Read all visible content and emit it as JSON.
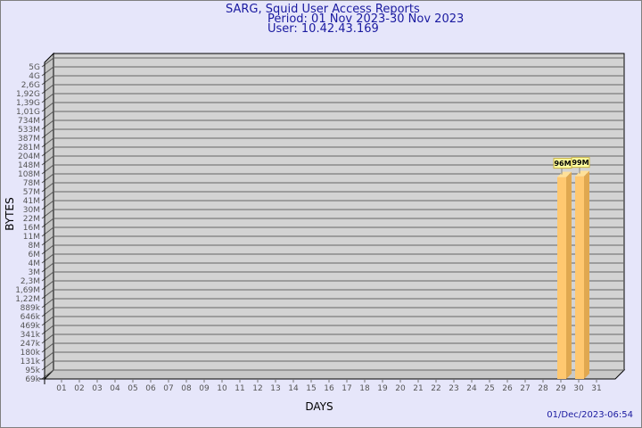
{
  "header": {
    "title": "SARG, Squid User Access Reports",
    "period": "Period: 01 Nov 2023-30 Nov 2023",
    "user": "User: 10.42.43.169"
  },
  "footer": {
    "generated": "01/Dec/2023-06:54"
  },
  "chart_data": {
    "type": "bar",
    "title": "SARG, Squid User Access Reports",
    "xlabel": "DAYS",
    "ylabel": "BYTES",
    "y_scale": "non-linear (tick labels)",
    "y_ticks": [
      "5G",
      "4G",
      "2,6G",
      "1,92G",
      "1,39G",
      "1,01G",
      "734M",
      "533M",
      "387M",
      "281M",
      "204M",
      "148M",
      "108M",
      "78M",
      "57M",
      "41M",
      "30M",
      "22M",
      "16M",
      "11M",
      "8M",
      "6M",
      "4M",
      "3M",
      "2,3M",
      "1,69M",
      "1,22M",
      "889k",
      "646k",
      "469k",
      "341k",
      "247k",
      "180k",
      "131k",
      "95k",
      "69k"
    ],
    "y_tick_values": [
      5000000000,
      4000000000,
      2600000000,
      1920000000,
      1390000000,
      1010000000,
      734000000,
      533000000,
      387000000,
      281000000,
      204000000,
      148000000,
      108000000,
      78000000,
      57000000,
      41000000,
      30000000,
      22000000,
      16000000,
      11000000,
      8000000,
      6000000,
      4000000,
      3000000,
      2300000,
      1690000,
      1220000,
      889000,
      646000,
      469000,
      341000,
      247000,
      180000,
      131000,
      95000,
      69000
    ],
    "categories": [
      "01",
      "02",
      "03",
      "04",
      "05",
      "06",
      "07",
      "08",
      "09",
      "10",
      "11",
      "12",
      "13",
      "14",
      "15",
      "16",
      "17",
      "18",
      "19",
      "20",
      "21",
      "22",
      "23",
      "24",
      "25",
      "26",
      "27",
      "28",
      "29",
      "30",
      "31"
    ],
    "bars": [
      {
        "day": "29",
        "value": 96000000,
        "label": "96M"
      },
      {
        "day": "30",
        "value": 99000000,
        "label": "99M"
      }
    ],
    "grid": true,
    "colors": {
      "bar_front": "#ffc870",
      "bar_side": "#e0a850",
      "bar_top": "#ffe098",
      "panel": "#d3d3d3",
      "label_bg": "#ffffa0"
    }
  }
}
